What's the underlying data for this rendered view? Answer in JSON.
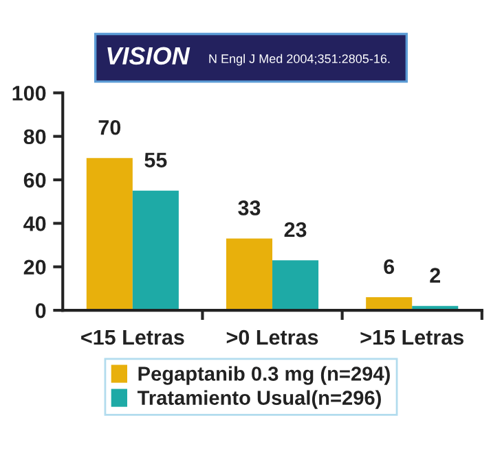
{
  "chart_data": {
    "type": "bar",
    "title": "VISION",
    "subtitle": "N Engl J Med 2004;351:2805-16.",
    "categories": [
      "<15 Letras",
      ">0 Letras",
      ">15 Letras"
    ],
    "series": [
      {
        "name": "Pegaptanib 0.3 mg (n=294)",
        "color": "#e8b00c",
        "values": [
          70,
          33,
          6
        ]
      },
      {
        "name": "Tratamiento Usual(n=296)",
        "color": "#1eaaa6",
        "values": [
          55,
          23,
          2
        ]
      }
    ],
    "ylim": [
      0,
      100
    ],
    "yticks": [
      0,
      20,
      40,
      60,
      80,
      100
    ],
    "data_labels": true,
    "legend": "bottom",
    "grid": false
  }
}
